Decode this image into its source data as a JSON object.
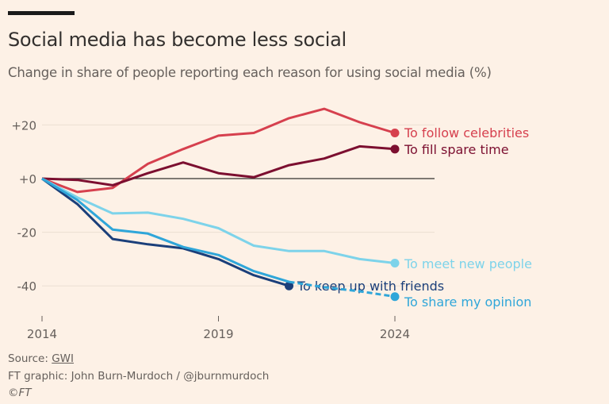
{
  "title": "Social media has become less social",
  "subtitle": "Change in share of people reporting each reason for using social media (%)",
  "footer": {
    "source_label": "Source:",
    "source_link": "GWI",
    "credit": "FT graphic: John Burn-Murdoch / @jburnmurdoch",
    "copyright": "©FT"
  },
  "chart_data": {
    "type": "line",
    "title": "Social media has become less social",
    "subtitle": "Change in share of people reporting each reason for using social media (%)",
    "xlabel": "",
    "ylabel": "",
    "x": [
      2014,
      2015,
      2016,
      2017,
      2018,
      2019,
      2020,
      2021,
      2022,
      2023,
      2024
    ],
    "xlim": [
      2014,
      2025
    ],
    "ylim": [
      -48,
      27
    ],
    "x_ticks": [
      2014,
      2019,
      2024
    ],
    "x_tick_labels": [
      "2014",
      "2019",
      "2024"
    ],
    "y_ticks": [
      20,
      0,
      -20,
      -40
    ],
    "y_tick_labels": [
      "+20",
      "+0",
      "-20",
      "-40"
    ],
    "grid": true,
    "legend": "direct labels at line ends",
    "series": [
      {
        "name": "To follow celebrities",
        "color": "#d6404e",
        "values": [
          0,
          -5,
          -3.5,
          5.5,
          11,
          16,
          17,
          22.5,
          26,
          21,
          17
        ]
      },
      {
        "name": "To fill spare time",
        "color": "#7c0f30",
        "values": [
          0,
          -0.5,
          -2.5,
          2,
          6,
          2,
          0.5,
          5,
          7.5,
          12,
          11
        ]
      },
      {
        "name": "To meet new people",
        "color": "#7dd3ea",
        "values": [
          0,
          -7,
          -13,
          -12.7,
          -15,
          -18.5,
          -25,
          -27,
          -27,
          -30,
          -31.5
        ]
      },
      {
        "name": "To keep up with friends",
        "color": "#1b3f7a",
        "values": [
          0,
          -9.5,
          -22.5,
          -24.5,
          -26,
          -30,
          -36,
          -40,
          null,
          null,
          null
        ]
      },
      {
        "name": "To share my opinion",
        "color": "#2fa6d9",
        "values": [
          0,
          -8,
          -19,
          -20.5,
          -25.5,
          -28.5,
          -34.5,
          -38.5,
          -40.5,
          -42,
          -44
        ],
        "dashed_from": 2021
      }
    ]
  }
}
